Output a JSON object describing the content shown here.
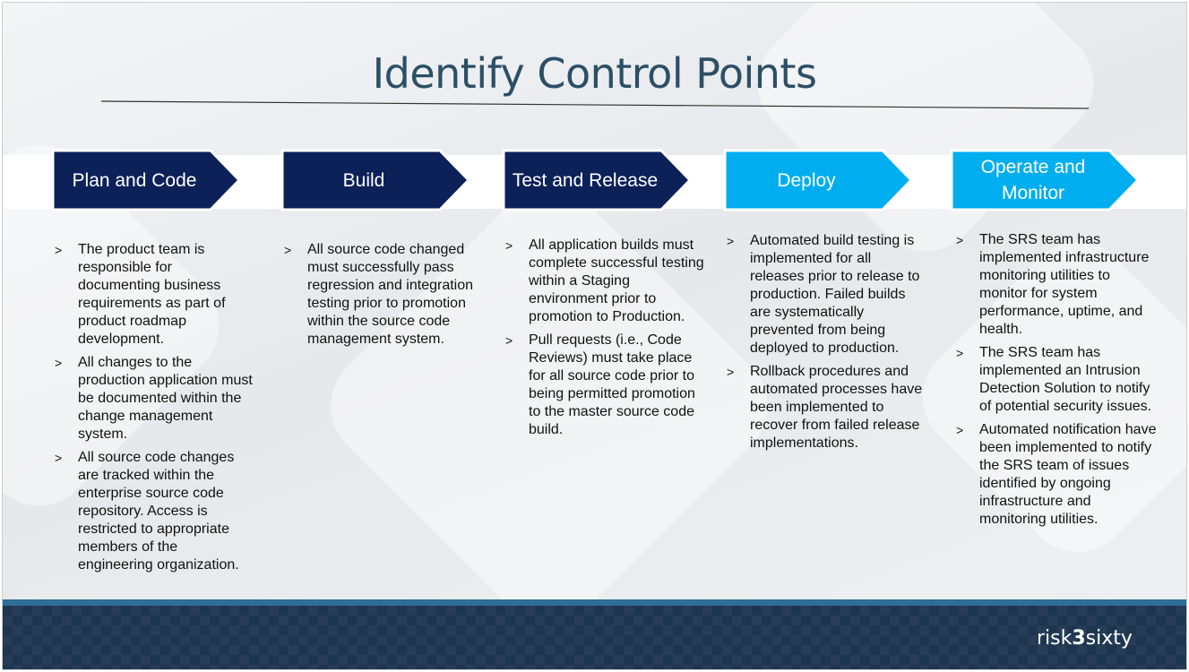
{
  "title": "Identify Control Points",
  "colors": {
    "dark_chevron": "#0d2159",
    "light_chevron": "#00aeef",
    "title": "#2c4f66",
    "footer": "#1e3550"
  },
  "stages": [
    {
      "label": "Plan and Code",
      "bullets": [
        "The product team is responsible for documenting business requirements as part of product roadmap development.",
        "All changes to the production application must be documented within the change management system.",
        "All source code changes are tracked within the enterprise source code repository.  Access is restricted to appropriate members of the engineering organization."
      ]
    },
    {
      "label": "Build",
      "bullets": [
        "All source code changed must successfully pass regression and integration testing prior to promotion within the source code management system."
      ]
    },
    {
      "label": "Test and Release",
      "bullets": [
        "All application builds must complete successful testing within a Staging environment prior to promotion to Production.",
        "Pull requests (i.e., Code Reviews) must take place for all source code prior to being permitted promotion to the master source code build."
      ]
    },
    {
      "label": "Deploy",
      "bullets": [
        "Automated build testing is implemented for all releases prior to release to production.  Failed builds are systematically prevented from being deployed  to production.",
        "Rollback procedures and automated processes have been implemented to recover from failed release implementations."
      ]
    },
    {
      "label": "Operate and Monitor",
      "bullets": [
        "The SRS team has implemented infrastructure monitoring utilities to monitor for system performance, uptime, and health.",
        "The SRS team has implemented an Intrusion Detection Solution to notify of potential security issues.",
        "Automated notification have been implemented to notify the SRS team of issues identified by ongoing infrastructure and monitoring utilities."
      ]
    }
  ],
  "bullet_marker": ">",
  "logo": {
    "left": "risk",
    "mid": "3",
    "right": "sixty"
  }
}
